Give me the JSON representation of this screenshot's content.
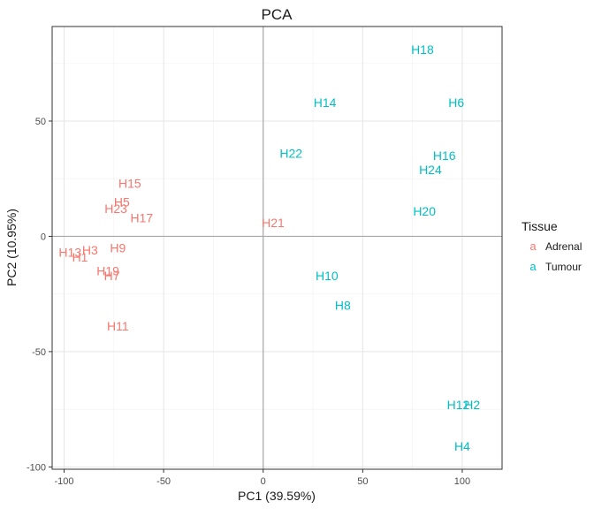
{
  "chart_data": {
    "type": "scatter",
    "title": "PCA",
    "xlabel": "PC1 (39.59%)",
    "ylabel": "PC2 (10.95%)",
    "xlim": [
      -106,
      120
    ],
    "ylim": [
      -101,
      91
    ],
    "x_ticks": [
      -100,
      -50,
      0,
      50,
      100
    ],
    "y_ticks": [
      -100,
      -50,
      0,
      50
    ],
    "x_tick_labels": [
      "-100",
      "-50",
      "0",
      "50",
      "100"
    ],
    "y_tick_labels": [
      "-100",
      "-50",
      "0",
      "50"
    ],
    "grid": true,
    "zero_lines": true,
    "legend": {
      "title": "Tissue",
      "placement": "right",
      "key_glyph": "a",
      "entries": [
        {
          "label": "Adrenal",
          "color": "#F8766D"
        },
        {
          "label": "Tumour",
          "color": "#00BFC4"
        }
      ]
    },
    "series": [
      {
        "name": "Adrenal",
        "color": "#F8766D",
        "points": [
          {
            "label": "H15",
            "x": -67,
            "y": 23
          },
          {
            "label": "H5",
            "x": -71,
            "y": 15
          },
          {
            "label": "H23",
            "x": -74,
            "y": 12
          },
          {
            "label": "H17",
            "x": -61,
            "y": 8
          },
          {
            "label": "H21",
            "x": 5,
            "y": 6
          },
          {
            "label": "H13",
            "x": -97,
            "y": -7
          },
          {
            "label": "H3",
            "x": -87,
            "y": -6
          },
          {
            "label": "H9",
            "x": -73,
            "y": -5
          },
          {
            "label": "H1",
            "x": -92,
            "y": -9
          },
          {
            "label": "H19",
            "x": -78,
            "y": -15
          },
          {
            "label": "H7",
            "x": -76,
            "y": -17
          },
          {
            "label": "H11",
            "x": -73,
            "y": -39
          }
        ]
      },
      {
        "name": "Tumour",
        "color": "#00BFC4",
        "points": [
          {
            "label": "H18",
            "x": 80,
            "y": 81
          },
          {
            "label": "H14",
            "x": 31,
            "y": 58
          },
          {
            "label": "H6",
            "x": 97,
            "y": 58
          },
          {
            "label": "H22",
            "x": 14,
            "y": 36
          },
          {
            "label": "H16",
            "x": 91,
            "y": 35
          },
          {
            "label": "H24",
            "x": 84,
            "y": 29
          },
          {
            "label": "H20",
            "x": 81,
            "y": 11
          },
          {
            "label": "H10",
            "x": 32,
            "y": -17
          },
          {
            "label": "H8",
            "x": 40,
            "y": -30
          },
          {
            "label": "H12",
            "x": 98,
            "y": -73
          },
          {
            "label": "H2",
            "x": 105,
            "y": -73
          },
          {
            "label": "H4",
            "x": 100,
            "y": -91
          }
        ]
      }
    ]
  }
}
